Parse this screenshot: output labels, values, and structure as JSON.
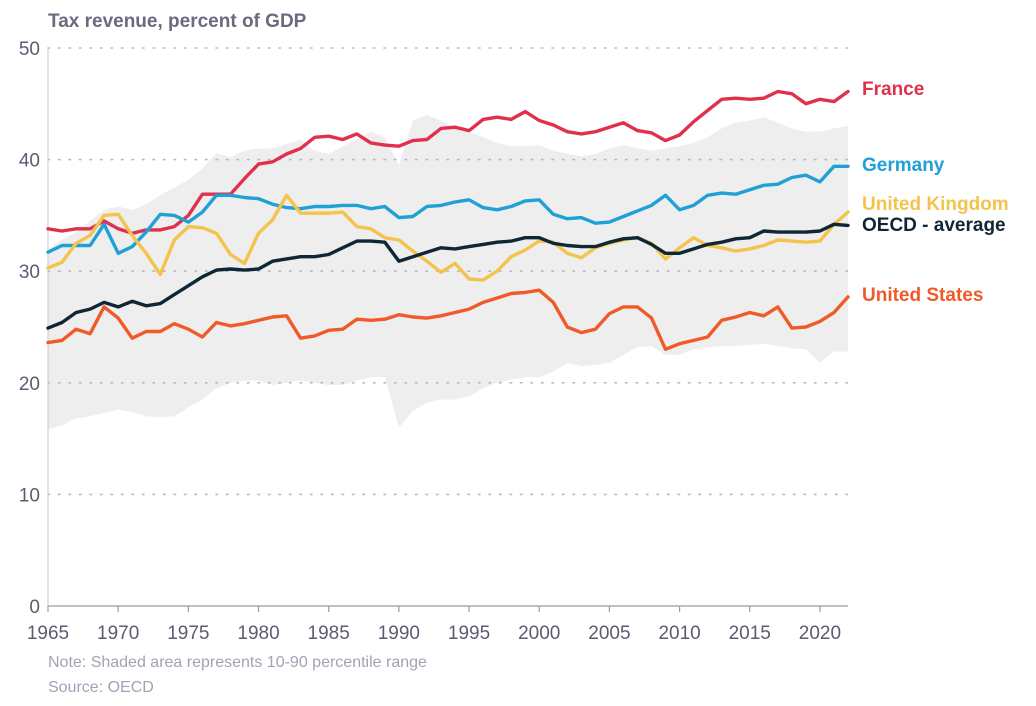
{
  "chart_data": {
    "type": "line",
    "title": "Tax revenue, percent of GDP",
    "ylim": [
      0,
      50
    ],
    "xlim": [
      1965,
      2022
    ],
    "yticks": [
      0,
      10,
      20,
      30,
      40,
      50
    ],
    "xticks": [
      1965,
      1970,
      1975,
      1980,
      1985,
      1990,
      1995,
      2000,
      2005,
      2010,
      2015,
      2020
    ],
    "grid": "horizontal dotted",
    "legend_placement": "right end labels",
    "x": [
      1965,
      1966,
      1967,
      1968,
      1969,
      1970,
      1971,
      1972,
      1973,
      1974,
      1975,
      1976,
      1977,
      1978,
      1979,
      1980,
      1981,
      1982,
      1983,
      1984,
      1985,
      1986,
      1987,
      1988,
      1989,
      1990,
      1991,
      1992,
      1993,
      1994,
      1995,
      1996,
      1997,
      1998,
      1999,
      2000,
      2001,
      2002,
      2003,
      2004,
      2005,
      2006,
      2007,
      2008,
      2009,
      2010,
      2011,
      2012,
      2013,
      2014,
      2015,
      2016,
      2017,
      2018,
      2019,
      2020,
      2021,
      2022
    ],
    "band": {
      "upper": [
        32.0,
        32.8,
        33.5,
        34.5,
        35.5,
        35.8,
        35.5,
        36.0,
        36.8,
        37.5,
        38.2,
        39.2,
        40.6,
        40.2,
        40.8,
        41.0,
        41.0,
        41.4,
        41.8,
        40.8,
        40.5,
        41.2,
        41.8,
        42.5,
        42.0,
        39.5,
        43.5,
        44.0,
        43.5,
        42.8,
        42.5,
        42.0,
        41.5,
        41.2,
        41.2,
        41.3,
        40.8,
        40.5,
        40.3,
        40.5,
        41.0,
        41.3,
        41.0,
        40.8,
        41.0,
        41.2,
        41.5,
        42.0,
        42.8,
        43.3,
        43.5,
        43.8,
        43.3,
        42.8,
        42.5,
        42.5,
        42.8,
        43.0
      ],
      "lower": [
        15.8,
        16.2,
        16.8,
        17.0,
        17.3,
        17.6,
        17.4,
        17.0,
        16.9,
        17.0,
        17.8,
        18.5,
        19.5,
        20.0,
        20.2,
        20.2,
        19.8,
        20.0,
        20.2,
        20.0,
        19.8,
        19.8,
        20.2,
        20.5,
        20.5,
        16.0,
        17.5,
        18.2,
        18.5,
        18.5,
        18.8,
        19.5,
        20.0,
        20.3,
        20.5,
        20.5,
        21.0,
        21.8,
        21.5,
        21.6,
        21.8,
        22.5,
        23.2,
        23.3,
        22.5,
        22.5,
        23.0,
        23.2,
        23.3,
        23.3,
        23.4,
        23.5,
        23.3,
        23.1,
        23.0,
        21.8,
        22.8,
        22.8
      ]
    },
    "series": [
      {
        "name": "France",
        "color": "#e0304e",
        "values": [
          33.8,
          33.6,
          33.8,
          33.8,
          34.5,
          33.8,
          33.4,
          33.7,
          33.7,
          34.0,
          35.0,
          36.9,
          36.9,
          36.9,
          38.3,
          39.6,
          39.8,
          40.5,
          41.0,
          42.0,
          42.1,
          41.8,
          42.3,
          41.5,
          41.3,
          41.2,
          41.7,
          41.8,
          42.8,
          42.9,
          42.6,
          43.6,
          43.8,
          43.6,
          44.3,
          43.5,
          43.1,
          42.5,
          42.3,
          42.5,
          42.9,
          43.3,
          42.6,
          42.4,
          41.7,
          42.2,
          43.4,
          44.4,
          45.4,
          45.5,
          45.4,
          45.5,
          46.1,
          45.9,
          45.0,
          45.4,
          45.2,
          46.1
        ]
      },
      {
        "name": "Germany",
        "color": "#1fa1d6",
        "values": [
          31.7,
          32.3,
          32.3,
          32.3,
          34.2,
          31.6,
          32.2,
          33.5,
          35.1,
          35.0,
          34.4,
          35.3,
          36.8,
          36.8,
          36.6,
          36.5,
          36.0,
          35.7,
          35.6,
          35.8,
          35.8,
          35.9,
          35.9,
          35.6,
          35.8,
          34.8,
          34.9,
          35.8,
          35.9,
          36.2,
          36.4,
          35.7,
          35.5,
          35.8,
          36.3,
          36.4,
          35.1,
          34.7,
          34.8,
          34.3,
          34.4,
          34.9,
          35.4,
          35.9,
          36.8,
          35.5,
          35.9,
          36.8,
          37.0,
          36.9,
          37.3,
          37.7,
          37.8,
          38.4,
          38.6,
          38.0,
          39.4,
          39.4
        ]
      },
      {
        "name": "United Kingdom",
        "color": "#f4c34e",
        "values": [
          30.3,
          30.8,
          32.5,
          33.2,
          35.0,
          35.1,
          33.2,
          31.6,
          29.7,
          32.8,
          34.0,
          33.9,
          33.4,
          31.5,
          30.7,
          33.4,
          34.6,
          36.8,
          35.2,
          35.2,
          35.2,
          35.3,
          34.0,
          33.8,
          33.0,
          32.8,
          31.8,
          30.9,
          29.9,
          30.7,
          29.3,
          29.2,
          30.0,
          31.3,
          31.9,
          32.7,
          32.6,
          31.6,
          31.2,
          32.1,
          32.5,
          32.8,
          33.0,
          32.5,
          31.1,
          32.1,
          33.0,
          32.3,
          32.1,
          31.8,
          32.0,
          32.3,
          32.8,
          32.7,
          32.6,
          32.7,
          34.2,
          35.3
        ]
      },
      {
        "name": "OECD - average",
        "color": "#0f2634",
        "values": [
          24.9,
          25.4,
          26.3,
          26.6,
          27.2,
          26.8,
          27.3,
          26.9,
          27.1,
          27.9,
          28.7,
          29.5,
          30.1,
          30.2,
          30.1,
          30.2,
          30.9,
          31.1,
          31.3,
          31.3,
          31.5,
          32.1,
          32.7,
          32.7,
          32.6,
          30.9,
          31.3,
          31.7,
          32.1,
          32.0,
          32.2,
          32.4,
          32.6,
          32.7,
          33.0,
          33.0,
          32.5,
          32.3,
          32.2,
          32.2,
          32.6,
          32.9,
          33.0,
          32.4,
          31.6,
          31.6,
          32.0,
          32.4,
          32.6,
          32.9,
          33.0,
          33.6,
          33.5,
          33.5,
          33.5,
          33.6,
          34.2,
          34.1
        ]
      },
      {
        "name": "United States",
        "color": "#f05a28",
        "values": [
          23.6,
          23.8,
          24.8,
          24.4,
          26.8,
          25.8,
          24.0,
          24.6,
          24.6,
          25.3,
          24.8,
          24.1,
          25.4,
          25.1,
          25.3,
          25.6,
          25.9,
          26.0,
          24.0,
          24.2,
          24.7,
          24.8,
          25.7,
          25.6,
          25.7,
          26.1,
          25.9,
          25.8,
          26.0,
          26.3,
          26.6,
          27.2,
          27.6,
          28.0,
          28.1,
          28.3,
          27.2,
          25.0,
          24.5,
          24.8,
          26.2,
          26.8,
          26.8,
          25.8,
          23.0,
          23.5,
          23.8,
          24.1,
          25.6,
          25.9,
          26.3,
          26.0,
          26.8,
          24.9,
          25.0,
          25.5,
          26.3,
          27.7
        ]
      }
    ],
    "notes": [
      "Note: Shaded area represents 10-90 percentile range",
      "Source: OECD"
    ]
  }
}
